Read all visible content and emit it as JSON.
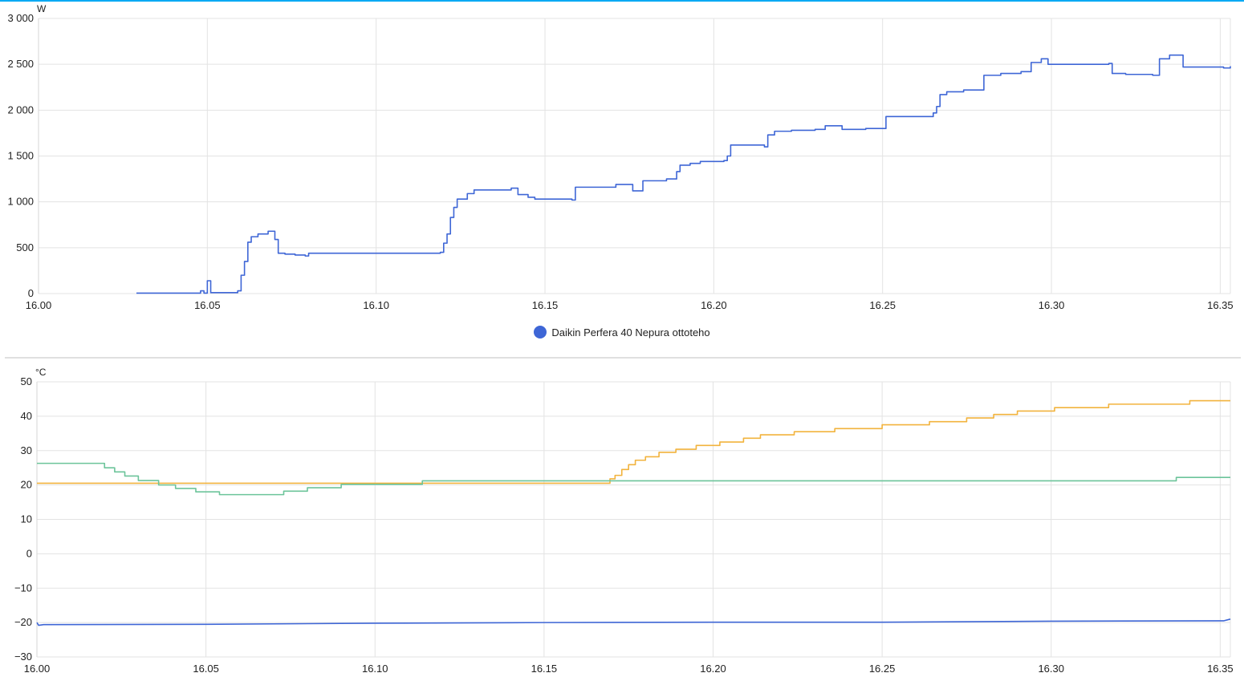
{
  "chart_data": [
    {
      "type": "line",
      "ylabel": "W",
      "ylim": [
        0,
        3000
      ],
      "yticks": [
        0,
        500,
        1000,
        1500,
        2000,
        2500,
        3000
      ],
      "ytick_labels": [
        "0",
        "500",
        "1 000",
        "1 500",
        "2 000",
        "2 500",
        "3 000"
      ],
      "xlim": [
        0,
        35.3
      ],
      "xticks": [
        0,
        5,
        10,
        15,
        20,
        25,
        30,
        35
      ],
      "xtick_labels": [
        "16.00",
        "16.05",
        "16.10",
        "16.15",
        "16.20",
        "16.25",
        "16.30",
        "16.35"
      ],
      "grid": true,
      "legend_position": "bottom-center",
      "series": [
        {
          "name": "Daikin Perfera 40 Nepura ottoteho",
          "color": "#3e66d6",
          "step": true,
          "points": [
            [
              2.9,
              5
            ],
            [
              4.7,
              5
            ],
            [
              4.8,
              30
            ],
            [
              4.9,
              5
            ],
            [
              5.0,
              140
            ],
            [
              5.1,
              10
            ],
            [
              5.7,
              10
            ],
            [
              5.9,
              30
            ],
            [
              6.0,
              200
            ],
            [
              6.1,
              350
            ],
            [
              6.2,
              560
            ],
            [
              6.3,
              620
            ],
            [
              6.5,
              650
            ],
            [
              6.8,
              680
            ],
            [
              7.0,
              590
            ],
            [
              7.1,
              440
            ],
            [
              7.3,
              430
            ],
            [
              7.6,
              420
            ],
            [
              7.9,
              410
            ],
            [
              8.0,
              440
            ],
            [
              11.5,
              440
            ],
            [
              11.9,
              450
            ],
            [
              12.0,
              550
            ],
            [
              12.1,
              650
            ],
            [
              12.2,
              830
            ],
            [
              12.3,
              940
            ],
            [
              12.4,
              1030
            ],
            [
              12.7,
              1090
            ],
            [
              12.9,
              1130
            ],
            [
              14.0,
              1150
            ],
            [
              14.2,
              1080
            ],
            [
              14.5,
              1050
            ],
            [
              14.7,
              1030
            ],
            [
              15.8,
              1020
            ],
            [
              15.9,
              1160
            ],
            [
              17.1,
              1190
            ],
            [
              17.6,
              1120
            ],
            [
              17.9,
              1230
            ],
            [
              18.6,
              1250
            ],
            [
              18.9,
              1330
            ],
            [
              19.0,
              1400
            ],
            [
              19.3,
              1420
            ],
            [
              19.6,
              1440
            ],
            [
              20.3,
              1450
            ],
            [
              20.4,
              1500
            ],
            [
              20.5,
              1620
            ],
            [
              21.2,
              1620
            ],
            [
              21.5,
              1600
            ],
            [
              21.6,
              1730
            ],
            [
              21.8,
              1770
            ],
            [
              22.3,
              1780
            ],
            [
              23.0,
              1790
            ],
            [
              23.3,
              1830
            ],
            [
              23.8,
              1790
            ],
            [
              24.5,
              1800
            ],
            [
              25.0,
              1800
            ],
            [
              25.1,
              1930
            ],
            [
              26.5,
              1970
            ],
            [
              26.6,
              2040
            ],
            [
              26.7,
              2170
            ],
            [
              26.9,
              2200
            ],
            [
              27.4,
              2220
            ],
            [
              28.0,
              2380
            ],
            [
              28.5,
              2400
            ],
            [
              29.1,
              2420
            ],
            [
              29.4,
              2520
            ],
            [
              29.7,
              2560
            ],
            [
              29.9,
              2500
            ],
            [
              31.7,
              2510
            ],
            [
              31.8,
              2400
            ],
            [
              32.2,
              2390
            ],
            [
              33.0,
              2380
            ],
            [
              33.2,
              2560
            ],
            [
              33.5,
              2600
            ],
            [
              33.8,
              2600
            ],
            [
              33.9,
              2470
            ],
            [
              35.1,
              2460
            ],
            [
              35.3,
              2480
            ]
          ]
        }
      ]
    },
    {
      "type": "line",
      "ylabel": "°C",
      "ylim": [
        -30,
        50
      ],
      "yticks": [
        -30,
        -20,
        -10,
        0,
        10,
        20,
        30,
        40,
        50
      ],
      "ytick_labels": [
        "−30",
        "−20",
        "−10",
        "0",
        "10",
        "20",
        "30",
        "40",
        "50"
      ],
      "xlim": [
        0,
        35.3
      ],
      "xticks": [
        0,
        5,
        10,
        15,
        20,
        25,
        30,
        35
      ],
      "xtick_labels": [
        "16.00",
        "16.05",
        "16.10",
        "16.15",
        "16.20",
        "16.25",
        "16.30",
        "16.35"
      ],
      "grid": true,
      "series": [
        {
          "color": "#f2b33d",
          "step": true,
          "points": [
            [
              0,
              20.5
            ],
            [
              16.9,
              20.5
            ],
            [
              16.95,
              21.8
            ],
            [
              17.1,
              22.8
            ],
            [
              17.3,
              24.5
            ],
            [
              17.5,
              25.9
            ],
            [
              17.7,
              27.2
            ],
            [
              18.0,
              28.2
            ],
            [
              18.4,
              29.5
            ],
            [
              18.9,
              30.4
            ],
            [
              19.5,
              31.5
            ],
            [
              20.2,
              32.5
            ],
            [
              20.9,
              33.6
            ],
            [
              21.4,
              34.6
            ],
            [
              22.4,
              35.5
            ],
            [
              23.6,
              36.4
            ],
            [
              25.0,
              37.5
            ],
            [
              26.4,
              38.4
            ],
            [
              27.5,
              39.5
            ],
            [
              28.3,
              40.5
            ],
            [
              29.0,
              41.5
            ],
            [
              30.1,
              42.5
            ],
            [
              31.7,
              43.5
            ],
            [
              34.1,
              44.5
            ],
            [
              35.3,
              44.5
            ]
          ]
        },
        {
          "color": "#6cc49a",
          "step": true,
          "points": [
            [
              0,
              26.3
            ],
            [
              1.8,
              26.3
            ],
            [
              2.0,
              25.0
            ],
            [
              2.3,
              23.8
            ],
            [
              2.6,
              22.6
            ],
            [
              3.0,
              21.3
            ],
            [
              3.6,
              20.0
            ],
            [
              4.1,
              19.0
            ],
            [
              4.7,
              18.0
            ],
            [
              5.4,
              17.2
            ],
            [
              7.3,
              18.2
            ],
            [
              8.0,
              19.2
            ],
            [
              9.0,
              20.2
            ],
            [
              11.4,
              21.2
            ],
            [
              33.6,
              21.2
            ],
            [
              33.7,
              22.2
            ],
            [
              35.3,
              22.2
            ]
          ]
        },
        {
          "color": "#3e66d6",
          "step": false,
          "points": [
            [
              0,
              -20.0
            ],
            [
              0.05,
              -20.8
            ],
            [
              0.2,
              -20.6
            ],
            [
              5,
              -20.5
            ],
            [
              10,
              -20.2
            ],
            [
              15,
              -20.0
            ],
            [
              20,
              -19.9
            ],
            [
              25,
              -19.9
            ],
            [
              30,
              -19.6
            ],
            [
              35.1,
              -19.5
            ],
            [
              35.3,
              -19.0
            ]
          ]
        }
      ]
    }
  ]
}
